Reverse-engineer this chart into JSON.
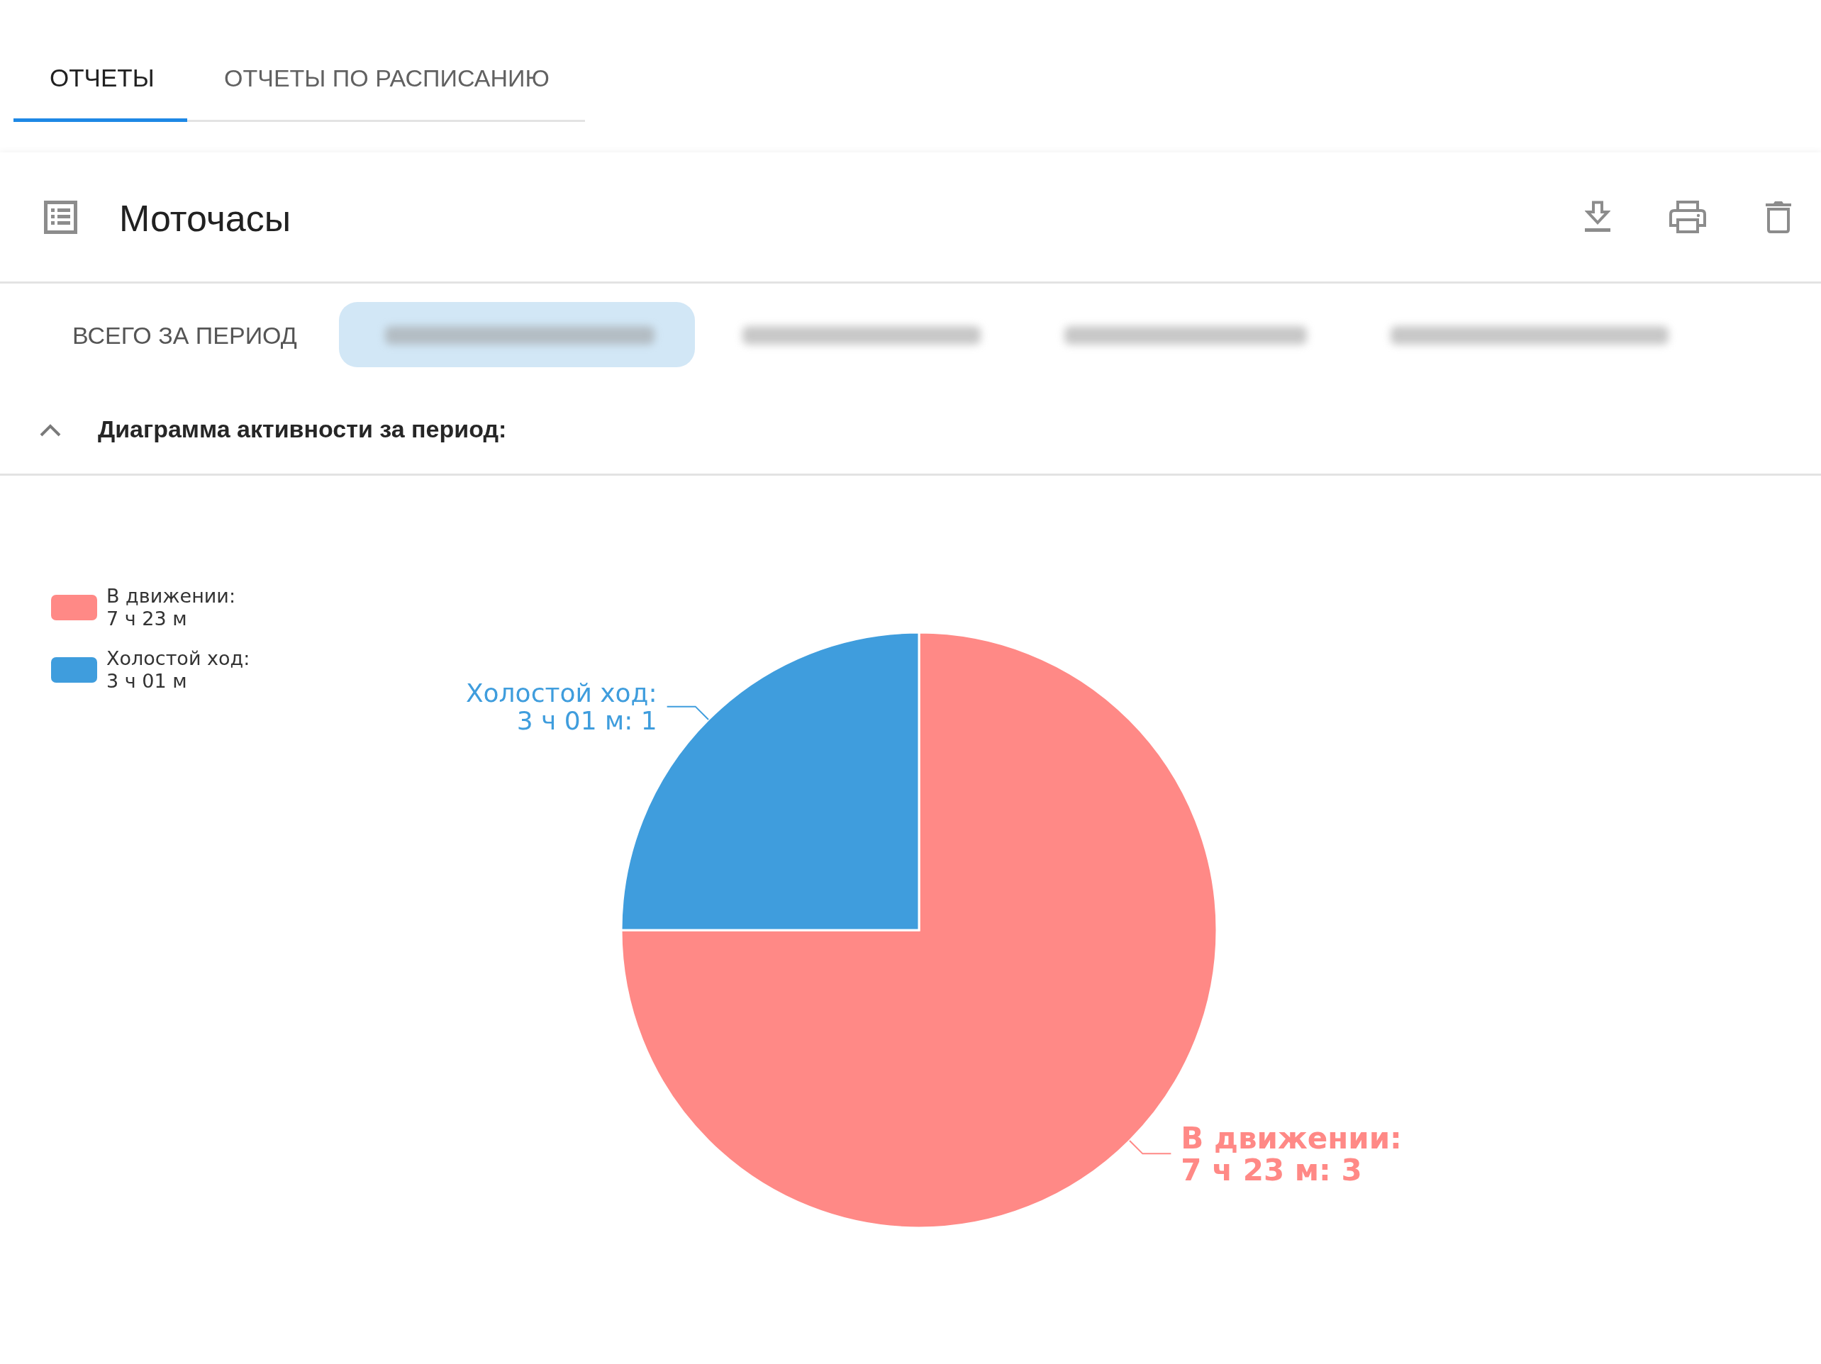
{
  "chart_data": {
    "type": "pie",
    "title": "Моточасы",
    "subtitle": "Диаграмма активности за период:",
    "annotations": [
      "ОТЧЕТЫ",
      "ОТЧЕТЫ ПО РАСПИСАНИЮ",
      "ВСЕГО ЗА ПЕРИОД"
    ],
    "categories": [
      "В движении: 7 ч 23 м",
      "Холостой ход: 3 ч 01 м"
    ],
    "values": [
      3,
      1
    ],
    "value_labels": [
      ": 3",
      ": 1"
    ],
    "colors": [
      "#ff8986",
      "#3f9ddd"
    ],
    "legend": "top left"
  }
}
